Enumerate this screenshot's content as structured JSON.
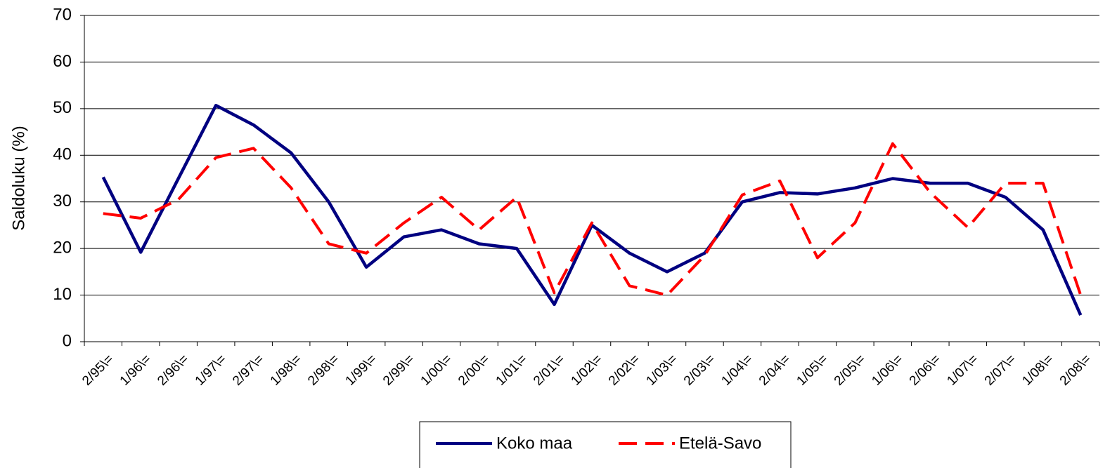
{
  "chart_data": {
    "type": "line",
    "y_label": "Saldoluku (%)",
    "categories": [
      "2/95\\=",
      "1/96\\=",
      "2/96\\=",
      "1/97\\=",
      "2/97\\=",
      "1/98\\=",
      "2/98\\=",
      "1/99\\=",
      "2/99\\=",
      "1/00\\=",
      "2/00\\=",
      "1/01\\=",
      "2/01\\=",
      "1/02\\=",
      "2/02\\=",
      "1/03\\=",
      "2/03\\=",
      "1/04\\=",
      "2/04\\=",
      "1/05\\=",
      "2/05\\=",
      "1/06\\=",
      "2/06\\=",
      "1/07\\=",
      "2/07\\=",
      "1/08\\=",
      "2/08\\="
    ],
    "series": [
      {
        "name": "Koko maa",
        "color": "#000080",
        "dash": false,
        "values": [
          35.3,
          19.2,
          35,
          50.7,
          46.5,
          40.5,
          30,
          16,
          22.5,
          24,
          21,
          20,
          8,
          25,
          19,
          15,
          19,
          30,
          32,
          31.7,
          33,
          35,
          34,
          34,
          31,
          24,
          5.7
        ]
      },
      {
        "name": "Etelä-Savo",
        "color": "#ff0000",
        "dash": true,
        "values": [
          27.5,
          26.5,
          30.5,
          39.5,
          41.5,
          33,
          21,
          19,
          25.5,
          31,
          24,
          31,
          10.5,
          25.5,
          12,
          10,
          18.5,
          31.5,
          34.5,
          18,
          25.5,
          42.5,
          32,
          24.5,
          34,
          34,
          10
        ]
      }
    ],
    "ylim": [
      0,
      70
    ],
    "yticks": [
      0,
      10,
      20,
      30,
      40,
      50,
      60,
      70
    ],
    "grid": true
  }
}
